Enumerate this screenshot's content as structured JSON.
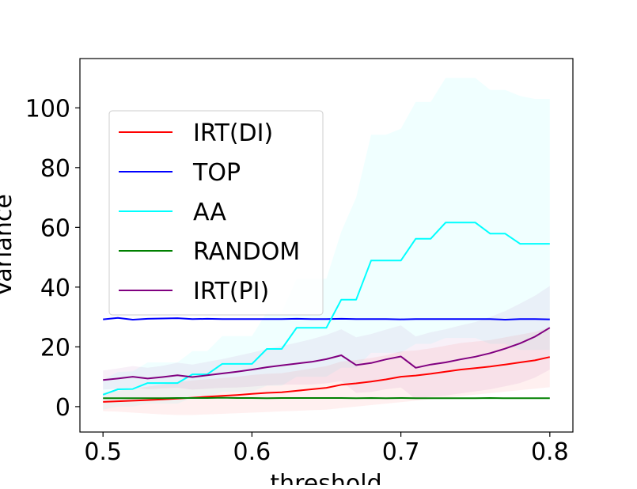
{
  "chart_data": {
    "type": "line",
    "xlabel": "threshold",
    "ylabel": "Variance",
    "xlim": [
      0.4845,
      0.8155
    ],
    "ylim": [
      -8.5,
      116.5
    ],
    "xticks": [
      0.5,
      0.6,
      0.7,
      0.8
    ],
    "xtick_labels": [
      "0.5",
      "0.6",
      "0.7",
      "0.8"
    ],
    "yticks": [
      0,
      20,
      40,
      60,
      80,
      100
    ],
    "ytick_labels": [
      "0",
      "20",
      "40",
      "60",
      "80",
      "100"
    ],
    "grid": false,
    "legend_position": "upper-left",
    "x": [
      0.5,
      0.51,
      0.52,
      0.53,
      0.54,
      0.55,
      0.56,
      0.57,
      0.58,
      0.59,
      0.6,
      0.61,
      0.62,
      0.63,
      0.64,
      0.65,
      0.66,
      0.67,
      0.68,
      0.69,
      0.7,
      0.71,
      0.72,
      0.73,
      0.74,
      0.75,
      0.76,
      0.77,
      0.78,
      0.79,
      0.8
    ],
    "series": [
      {
        "name": "IRT(DI)",
        "color": "#ff0000",
        "values": [
          1.6,
          1.8,
          2.0,
          2.2,
          2.4,
          2.7,
          3.0,
          3.3,
          3.6,
          3.9,
          4.3,
          4.6,
          4.8,
          5.3,
          5.8,
          6.3,
          7.3,
          7.8,
          8.4,
          9.1,
          10.0,
          10.4,
          11.0,
          11.7,
          12.4,
          12.9,
          13.4,
          14.1,
          14.8,
          15.5,
          16.6
        ],
        "band_lower": [
          -1.5,
          -1.7,
          -2.0,
          -2.3,
          -2.6,
          -2.8,
          -2.8,
          -2.6,
          -2.4,
          -2.2,
          -2.0,
          -1.8,
          -1.6,
          -1.4,
          -1.2,
          -1.0,
          -0.5,
          0.0,
          0.5,
          1.0,
          1.5,
          2.0,
          2.5,
          3.0,
          3.5,
          4.0,
          4.5,
          5.0,
          5.5,
          6.0,
          6.5
        ],
        "band_upper": [
          4.7,
          5.3,
          6.0,
          6.7,
          7.4,
          8.2,
          8.8,
          9.2,
          9.6,
          10.0,
          10.6,
          11.0,
          11.2,
          12.0,
          12.8,
          13.6,
          15.1,
          15.6,
          16.3,
          17.2,
          18.5,
          18.8,
          19.5,
          20.4,
          21.3,
          21.8,
          22.3,
          23.2,
          24.1,
          25.0,
          26.7
        ]
      },
      {
        "name": "TOP",
        "color": "#0000ff",
        "values": [
          29.2,
          29.7,
          29.1,
          29.4,
          29.5,
          29.6,
          29.3,
          29.4,
          29.3,
          29.3,
          29.3,
          29.3,
          29.3,
          29.4,
          29.3,
          29.3,
          29.4,
          29.3,
          29.3,
          29.3,
          29.2,
          29.3,
          29.3,
          29.3,
          29.3,
          29.3,
          29.3,
          29.1,
          29.3,
          29.3,
          29.2
        ]
      },
      {
        "name": "AA",
        "color": "#00ffff",
        "values": [
          4.0,
          5.8,
          5.9,
          7.9,
          7.9,
          7.9,
          10.8,
          10.8,
          14.3,
          14.3,
          14.3,
          19.3,
          19.3,
          26.4,
          26.4,
          26.4,
          35.8,
          35.8,
          48.9,
          48.9,
          48.9,
          56.2,
          56.2,
          61.6,
          61.6,
          61.6,
          57.9,
          57.9,
          54.5,
          54.5,
          54.5
        ],
        "band_lower": [
          -1.0,
          0.0,
          0.0,
          1.0,
          1.0,
          1.0,
          3.0,
          3.0,
          5.0,
          5.0,
          5.0,
          7.0,
          7.0,
          10.0,
          10.0,
          10.0,
          13.0,
          13.0,
          18.0,
          18.0,
          18.0,
          21.0,
          21.0,
          23.0,
          23.0,
          23.0,
          21.0,
          21.0,
          19.0,
          19.0,
          19.0
        ],
        "band_upper": [
          9.0,
          11.6,
          11.8,
          14.8,
          14.8,
          14.8,
          18.6,
          18.6,
          23.6,
          23.6,
          23.6,
          31.6,
          31.6,
          42.8,
          42.8,
          42.8,
          58.6,
          70.0,
          91.0,
          91.0,
          93.0,
          102.0,
          102.0,
          110.0,
          110.0,
          110.0,
          106.0,
          106.0,
          104.0,
          103.0,
          103.0
        ]
      },
      {
        "name": "RANDOM",
        "color": "#008000",
        "values": [
          2.8,
          2.8,
          2.8,
          2.8,
          2.8,
          2.9,
          2.9,
          2.9,
          3.0,
          2.9,
          2.9,
          2.8,
          2.9,
          2.9,
          2.9,
          2.9,
          2.9,
          2.8,
          2.9,
          2.8,
          2.9,
          2.8,
          2.8,
          2.8,
          2.8,
          2.8,
          2.9,
          2.8,
          2.8,
          2.8,
          2.8
        ]
      },
      {
        "name": "IRT(PI)",
        "color": "#800080",
        "values": [
          8.9,
          9.4,
          10.0,
          9.4,
          9.9,
          10.5,
          9.9,
          10.5,
          11.1,
          11.7,
          12.4,
          13.2,
          13.8,
          14.4,
          15.0,
          15.9,
          17.2,
          13.9,
          14.6,
          15.8,
          16.8,
          13.0,
          14.1,
          14.8,
          15.8,
          16.7,
          17.9,
          19.4,
          21.2,
          23.4,
          26.4
        ],
        "band_lower": [
          5.7,
          6.0,
          6.4,
          5.8,
          6.1,
          6.3,
          5.7,
          6.0,
          6.3,
          6.4,
          6.7,
          7.1,
          7.3,
          7.4,
          7.4,
          7.8,
          8.5,
          4.6,
          4.9,
          5.8,
          6.4,
          2.5,
          3.3,
          3.7,
          4.4,
          5.1,
          5.8,
          6.8,
          7.9,
          9.7,
          12.4
        ],
        "band_upper": [
          12.1,
          12.8,
          13.6,
          13.0,
          13.7,
          14.7,
          14.1,
          15.0,
          15.9,
          17.0,
          18.1,
          19.3,
          20.3,
          21.4,
          22.6,
          24.0,
          25.9,
          23.2,
          24.3,
          25.8,
          27.2,
          23.5,
          24.9,
          25.9,
          27.2,
          28.3,
          30.0,
          32.0,
          34.5,
          37.1,
          40.4
        ]
      }
    ]
  }
}
